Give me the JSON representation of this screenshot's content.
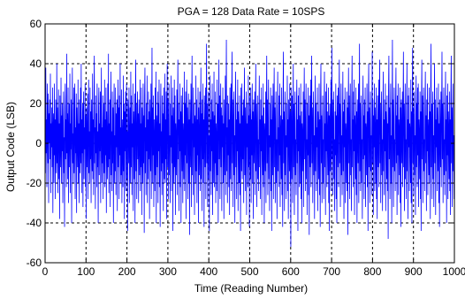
{
  "chart_data": {
    "type": "line",
    "title": "PGA = 128  Data Rate = 10SPS",
    "xlabel": "Time (Reading Number)",
    "ylabel": "Output Code (LSB)",
    "xlim": [
      0,
      1000
    ],
    "ylim": [
      -60,
      60
    ],
    "x_ticks": [
      0,
      100,
      200,
      300,
      400,
      500,
      600,
      700,
      800,
      900,
      1000
    ],
    "y_ticks": [
      -60,
      -40,
      -20,
      0,
      20,
      40,
      60
    ],
    "x_tick_labels": [
      "0",
      "100",
      "200",
      "300",
      "400",
      "500",
      "600",
      "700",
      "800",
      "900",
      "1000"
    ],
    "y_tick_labels": [
      "-60",
      "-40",
      "-20",
      "0",
      "20",
      "40",
      "60"
    ],
    "grid": true,
    "grid_style": "dashed",
    "series": [
      {
        "color": "#0000ff",
        "values": [
          20,
          -15,
          38,
          -5,
          12,
          -22,
          30,
          5,
          -10,
          25,
          -30,
          15,
          0,
          22,
          -8,
          35,
          -25,
          10,
          -2,
          18,
          -12,
          28,
          -35,
          8,
          15,
          -20,
          30,
          -6,
          12,
          -28,
          22,
          3,
          -15,
          40,
          -10,
          18,
          -25,
          5,
          27,
          -18,
          10,
          -38,
          24,
          0,
          -12,
          33,
          -20,
          14,
          -4,
          20,
          -30,
          8,
          26,
          -15,
          3,
          -42,
          18,
          30,
          -8,
          12,
          -22,
          45,
          -5,
          15,
          -18,
          28,
          -30,
          6,
          20,
          -12,
          35,
          -25,
          10,
          -3,
          22,
          -40,
          15,
          38,
          -10,
          5,
          -20,
          28,
          -15,
          12,
          30,
          -28,
          8,
          -5,
          25,
          -35,
          18,
          2,
          -12,
          32,
          -20,
          10,
          -30,
          22,
          5,
          -15,
          28,
          -10,
          40,
          -25,
          12,
          -5,
          20,
          -32,
          15,
          26,
          -18,
          8,
          -3,
          30,
          -22,
          14,
          -38,
          18,
          4,
          -12,
          25,
          -28,
          10,
          32,
          -15,
          6,
          -20,
          28,
          -8,
          16,
          -30,
          22,
          2,
          -14,
          35,
          -18,
          12,
          -26,
          20,
          44,
          -10,
          8,
          -33,
          24,
          -5,
          15,
          -22,
          30,
          -12,
          6,
          -40,
          18,
          28,
          -16,
          10,
          -4,
          26,
          -30,
          14,
          38,
          -20,
          8,
          -10,
          24,
          -28,
          4,
          20,
          -15,
          32,
          -22,
          12,
          -6,
          28,
          -35,
          16,
          2,
          -18,
          30,
          -12,
          45,
          -25,
          10,
          -8,
          22,
          -32,
          14,
          36,
          -16,
          6,
          -24,
          26,
          -10,
          18,
          -40,
          12,
          30,
          -20,
          4,
          -14,
          28,
          -26,
          15,
          -2,
          22,
          -34,
          10,
          32,
          -12,
          18,
          -28,
          24,
          -6,
          40,
          -20,
          8,
          -16,
          27,
          -30,
          12,
          3,
          -22,
          34,
          -14,
          20,
          -38,
          16,
          -4,
          26,
          -24,
          10,
          30,
          -18,
          6,
          -44,
          22,
          14,
          -10,
          28,
          -30,
          4,
          18,
          -20,
          36,
          -12,
          24,
          -26,
          10,
          -2,
          30,
          -34,
          16,
          8,
          -18,
          25,
          -40,
          12,
          42,
          -14,
          20,
          -28,
          6,
          26,
          -8,
          15,
          -30,
          22,
          3,
          -16,
          32,
          -24,
          10,
          -12,
          28,
          -36,
          18,
          4,
          -20,
          30,
          -10,
          14,
          -45,
          24,
          38,
          -15,
          8,
          -26,
          20,
          -4,
          34,
          -30,
          12,
          -18,
          26,
          -8,
          16,
          -38,
          22,
          5,
          -14,
          30,
          -28,
          10,
          48,
          -20,
          18,
          -6,
          24,
          -32,
          12,
          2,
          -24,
          28,
          -16,
          36,
          -40,
          14,
          8,
          -12,
          26,
          -30,
          20,
          -4,
          32,
          -22,
          10,
          -42,
          18,
          30,
          -14,
          6,
          -26,
          24,
          -10,
          15,
          -34,
          28,
          2,
          -18,
          35,
          -20,
          12,
          -8,
          26,
          -38,
          16,
          40,
          -12,
          22,
          -28,
          8,
          30,
          -16,
          4,
          -30,
          20,
          -2,
          34,
          -24,
          14,
          -10,
          28,
          -44,
          18,
          6,
          -20,
          32,
          -12,
          24,
          -36,
          10,
          3,
          -16,
          27,
          -26,
          15,
          42,
          -8,
          20,
          -34,
          12,
          -4,
          30,
          -22,
          16,
          -40,
          24,
          8,
          -14,
          28,
          -30,
          10,
          2,
          -18,
          36,
          -24,
          20,
          -6,
          26,
          -38,
          14,
          32,
          -10,
          18,
          -28,
          6,
          25,
          -20,
          12,
          -46,
          22,
          4,
          -12,
          30,
          -32,
          16,
          44,
          -16,
          10,
          -26,
          28,
          -2,
          20,
          -36,
          14,
          8,
          -20,
          34,
          -14,
          22,
          -30,
          12,
          -6,
          28,
          -40,
          18,
          3,
          -16,
          26,
          -24,
          10,
          38,
          -18,
          15,
          -34,
          22,
          -8,
          30,
          -20,
          12,
          -42,
          24,
          6,
          -12,
          28,
          -28,
          16,
          50,
          -10,
          20,
          -32,
          8,
          26,
          -18,
          4,
          -44,
          18,
          34,
          -14,
          12,
          -26,
          22,
          -4,
          30,
          -36,
          16,
          8,
          -20,
          36,
          -22,
          14,
          -10,
          26,
          -30,
          10,
          2,
          -24,
          32,
          -16,
          20,
          -40,
          12,
          42,
          -8,
          24,
          -28,
          6,
          30,
          -12,
          18,
          -34,
          14,
          -2,
          28,
          -20,
          10,
          -38,
          22,
          4,
          -16,
          34,
          -26,
          16,
          52,
          -14,
          8,
          -30,
          24,
          -6,
          20,
          -22,
          12,
          -36,
          28,
          2,
          -18,
          30,
          -24,
          14,
          46,
          -10,
          22,
          -32,
          8,
          26,
          -16,
          4,
          -40,
          18,
          36,
          -12,
          12,
          -28,
          20,
          -4,
          32,
          -34,
          16,
          6,
          -20,
          24,
          -26,
          10,
          -44,
          28,
          3,
          -14,
          30,
          -18,
          14,
          -8,
          22,
          -30,
          12,
          38,
          -16,
          18,
          -24,
          6,
          26,
          -36,
          10,
          -2,
          20,
          -22,
          34,
          -12,
          14,
          -42,
          24,
          8,
          -18,
          28,
          -30,
          12,
          -6,
          30,
          -20,
          16,
          -38,
          22,
          4,
          -10,
          26,
          -26,
          10,
          40,
          -14,
          20,
          -32,
          8,
          24,
          -18,
          2,
          -24,
          16,
          34,
          -12,
          12,
          -28,
          22,
          -4,
          28,
          -36,
          14,
          6,
          -16,
          30,
          -22,
          18,
          -40,
          10,
          3,
          -14,
          26,
          -30,
          16,
          44,
          -10,
          22,
          -26,
          8,
          32,
          -18,
          4,
          -34,
          20,
          -2,
          28,
          -24,
          12,
          -44,
          24,
          6,
          -16,
          30,
          -28,
          14,
          38,
          -12,
          18,
          -30,
          10,
          26,
          -20,
          2,
          -38,
          16,
          36,
          -14,
          8,
          -22,
          24,
          -6,
          30,
          -32,
          14,
          4,
          -18,
          28,
          -26,
          12,
          -42,
          22,
          46,
          -10,
          16,
          -34,
          8,
          26,
          -16,
          4,
          -28,
          20,
          -2,
          34,
          -24,
          12,
          -38,
          22,
          6,
          -14,
          30,
          -20,
          16,
          -52,
          28,
          3,
          -18,
          24,
          -30,
          10,
          40,
          -12,
          20,
          -36,
          8,
          26,
          -16,
          2,
          -26,
          18,
          32,
          -10,
          12,
          -44,
          24,
          -4,
          28,
          -22,
          14,
          6,
          -20,
          30,
          -28,
          16,
          -40,
          10,
          4,
          -14,
          26,
          -32,
          12,
          38,
          -8,
          22,
          -24,
          8,
          30,
          -18,
          2,
          -36,
          20,
          -6,
          28,
          -26,
          14,
          -46,
          24,
          6,
          -12,
          32,
          -22,
          16,
          44,
          -10,
          18,
          -30,
          10,
          26,
          -16,
          4,
          -38,
          12,
          34,
          -14,
          20,
          -24,
          8,
          -2,
          28,
          -34,
          16,
          6,
          -18,
          30,
          -26,
          12,
          -42,
          22,
          40,
          -10,
          14,
          -30,
          8,
          24,
          -20,
          2,
          -28,
          18,
          36,
          -12,
          10,
          -36,
          26,
          -4,
          30,
          -22,
          16,
          4,
          -16,
          28,
          -30,
          14,
          -44,
          20,
          6,
          -14,
          32,
          -24,
          12,
          48,
          -8,
          22,
          -26,
          10,
          26,
          -18,
          2,
          -34,
          16,
          -6,
          30,
          -28,
          14,
          -40,
          24,
          6,
          -12,
          28,
          -22,
          18,
          42,
          -10,
          20,
          -32,
          8,
          30,
          -16,
          4,
          -26,
          12,
          36,
          -14,
          16,
          -38,
          22,
          -2,
          28,
          -30,
          10,
          4,
          -20,
          26,
          -24,
          18,
          -46,
          14,
          38,
          -10,
          24,
          -28,
          8,
          30,
          -16,
          2,
          -34,
          20,
          44,
          -12,
          12,
          -22,
          26,
          -4,
          32,
          -36,
          14,
          6,
          -18,
          28,
          -26,
          16,
          -40,
          22,
          4,
          -10,
          30,
          -30,
          12,
          50,
          -14,
          20,
          -24,
          8,
          24,
          -20,
          2,
          -38,
          18,
          34,
          -8,
          14,
          -28,
          22,
          -6,
          28,
          -32,
          10,
          6,
          -16,
          30,
          -22,
          16,
          -44,
          24,
          40,
          -12,
          18,
          -30,
          8,
          26,
          -14,
          4,
          -26,
          12,
          46,
          -10,
          22,
          -36,
          14,
          -2,
          30,
          -24,
          18,
          6,
          -20,
          28,
          -28,
          12,
          -38,
          24,
          4,
          -12,
          32,
          -22,
          16,
          42,
          -10,
          20,
          -30,
          8,
          26,
          -16,
          2,
          -34,
          14,
          36,
          -14,
          12,
          -26,
          22,
          -4,
          30,
          -34,
          16,
          6,
          -18,
          24,
          -24,
          10,
          -48,
          26,
          44,
          -8,
          18,
          -28,
          12,
          30,
          -20,
          4,
          -40,
          16,
          52,
          -12,
          22,
          -32,
          8,
          28,
          -14,
          2,
          -24,
          20,
          38,
          -10,
          14,
          -36,
          24,
          -6,
          30,
          -26,
          12,
          6,
          -16,
          28,
          -30,
          18,
          -42,
          22,
          4,
          -10,
          26,
          -22,
          14,
          46,
          -12,
          20,
          -34,
          10,
          30,
          -18,
          2,
          -28,
          16,
          40,
          -14,
          12,
          -38,
          24,
          -2,
          28,
          -24,
          10,
          6,
          -20,
          32,
          -30,
          16,
          -40,
          22,
          48,
          -10,
          18,
          -26,
          8,
          26,
          -16,
          4,
          -36,
          14,
          34,
          -12,
          20,
          -22,
          28,
          -6,
          30,
          -32,
          12,
          4,
          -18,
          26,
          -28,
          16,
          -44,
          20,
          42,
          -8,
          24,
          -30,
          10,
          28,
          -14,
          2,
          -24,
          18,
          36,
          -10,
          14,
          -34,
          22,
          -4,
          30,
          -26,
          12,
          6,
          -16,
          28,
          -20,
          16,
          -38,
          24,
          50,
          -12,
          20,
          -28,
          8,
          26,
          -18,
          4,
          -32,
          14,
          40,
          -10,
          22,
          -36,
          12,
          -2,
          28,
          -24,
          18,
          6,
          -14,
          30,
          -30,
          10,
          -42,
          22,
          4,
          -12,
          26,
          -22,
          16,
          46,
          -8,
          20,
          -30,
          10,
          28,
          -16,
          2,
          -26,
          14,
          36,
          -14,
          12,
          -40,
          24,
          -6,
          30,
          -28,
          16,
          6,
          -18,
          26,
          -24,
          12,
          -36,
          22,
          44,
          -10,
          18,
          -32,
          8,
          30,
          -14,
          4,
          -28,
          16
        ]
      }
    ]
  }
}
